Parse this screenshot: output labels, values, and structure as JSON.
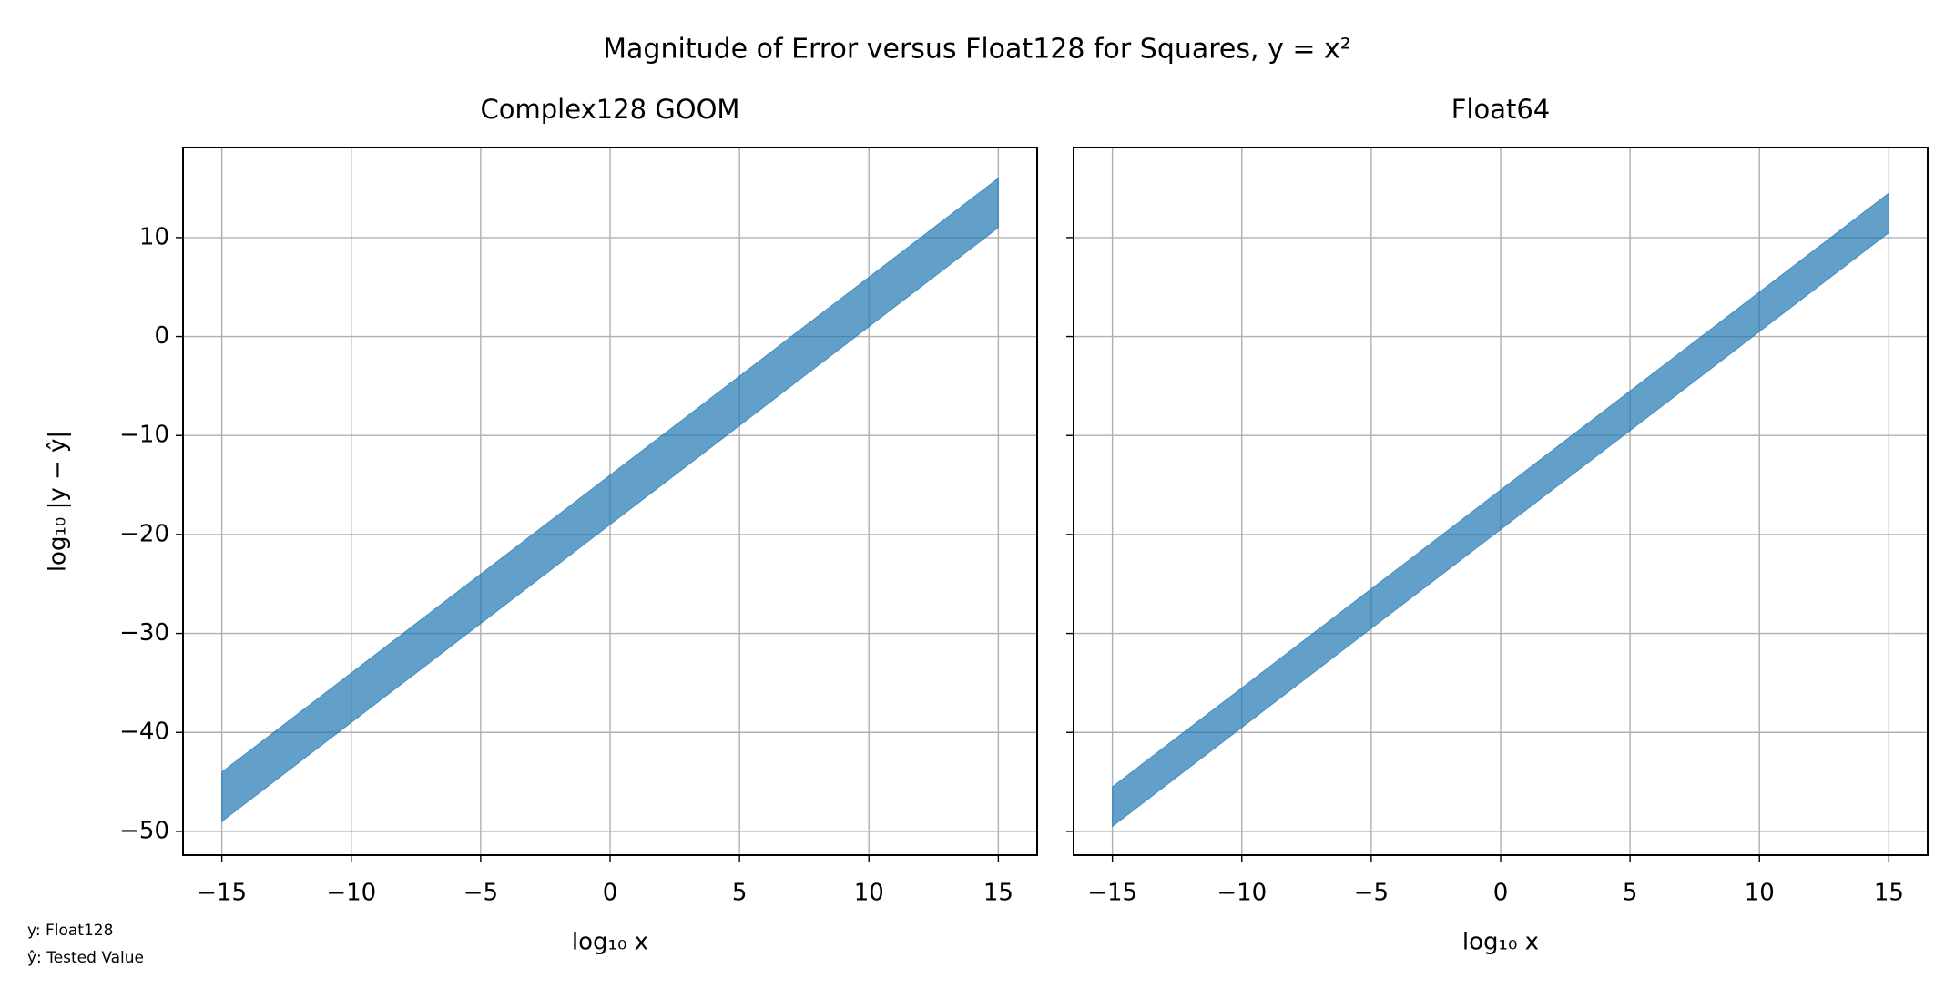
{
  "title": "Magnitude of Error versus Float128 for Squares, y = x²",
  "notes": [
    "y: Float128",
    "ŷ: Tested Value"
  ],
  "chart_data": [
    {
      "type": "band",
      "title": "Complex128 GOOM",
      "xlabel": "log₁₀ x",
      "ylabel": "log₁₀ |y − ŷ|",
      "x": [
        -15,
        -12.5,
        -10,
        -7.5,
        -5,
        -2.5,
        0,
        2.5,
        5,
        7.5,
        10,
        12.5,
        15
      ],
      "series": [
        {
          "color": "#1f77b4",
          "values": [
            -44,
            -39,
            -34,
            -29,
            -24,
            -19,
            -14,
            -9,
            -4,
            1,
            6,
            11,
            16
          ]
        },
        {
          "color": "#1f77b4",
          "values": [
            -49,
            -44,
            -39,
            -34,
            -29,
            -24,
            -19,
            -14,
            -9,
            -4,
            1,
            6,
            11
          ]
        }
      ],
      "alpha": 0.7,
      "xlim": [
        -16.5,
        16.5
      ],
      "ylim": [
        -52.4,
        19.1
      ],
      "xticks": [
        {
          "value": -15,
          "label": "−15"
        },
        {
          "value": -10,
          "label": "−10"
        },
        {
          "value": -5,
          "label": "−5"
        },
        0,
        5,
        10,
        15
      ],
      "yticks": [
        {
          "value": -50,
          "label": "−50"
        },
        {
          "value": -40,
          "label": "−40"
        },
        {
          "value": -30,
          "label": "−30"
        },
        {
          "value": -20,
          "label": "−20"
        },
        {
          "value": -10,
          "label": "−10"
        },
        0,
        10
      ],
      "grid": true,
      "ytick_labels": true
    },
    {
      "type": "band",
      "title": "Float64",
      "xlabel": "log₁₀ x",
      "x": [
        -15,
        -12.5,
        -10,
        -7.5,
        -5,
        -2.5,
        0,
        2.5,
        5,
        7.5,
        10,
        12.5,
        15
      ],
      "series": [
        {
          "color": "#1f77b4",
          "values": [
            -45.5,
            -40.5,
            -35.5,
            -30.5,
            -25.5,
            -20.5,
            -15.5,
            -10.5,
            -5.5,
            -0.5,
            4.5,
            9.5,
            14.5
          ]
        },
        {
          "color": "#1f77b4",
          "values": [
            -49.5,
            -44.5,
            -39.5,
            -34.5,
            -29.5,
            -24.5,
            -19.5,
            -14.5,
            -9.5,
            -4.5,
            0.5,
            5.5,
            10.5
          ]
        }
      ],
      "alpha": 0.7,
      "xlim": [
        -16.5,
        16.5
      ],
      "ylim": [
        -52.4,
        19.1
      ],
      "xticks": [
        {
          "value": -15,
          "label": "−15"
        },
        {
          "value": -10,
          "label": "−10"
        },
        {
          "value": -5,
          "label": "−5"
        },
        0,
        5,
        10,
        15
      ],
      "yticks": [
        {
          "value": -50,
          "label": "−50"
        },
        {
          "value": -40,
          "label": "−40"
        },
        {
          "value": -30,
          "label": "−30"
        },
        {
          "value": -20,
          "label": "−20"
        },
        {
          "value": -10,
          "label": "−10"
        },
        0,
        10
      ],
      "grid": true,
      "ytick_labels": false
    }
  ]
}
